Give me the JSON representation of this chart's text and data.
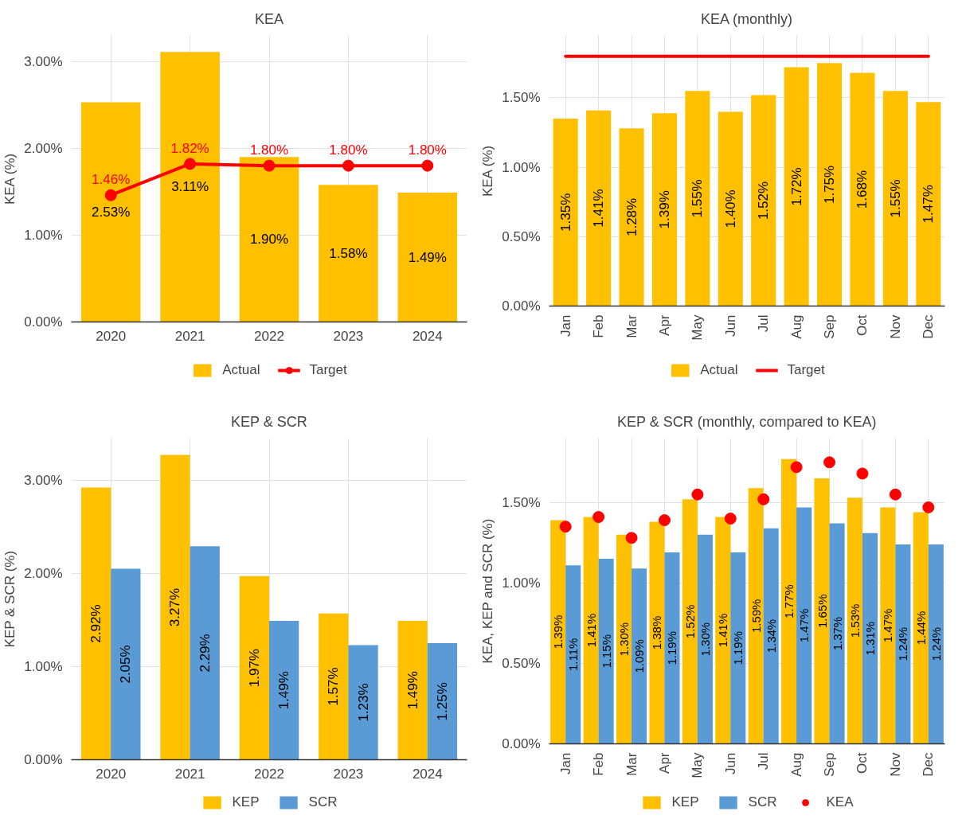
{
  "chart_data": [
    {
      "type": "bar",
      "title": "KEA",
      "ylabel": "KEA (%)",
      "categories": [
        "2020",
        "2021",
        "2022",
        "2023",
        "2024"
      ],
      "ylim": [
        0,
        3.3
      ],
      "yticks": [
        {
          "value": 0,
          "label": "0.00%"
        },
        {
          "value": 1,
          "label": "1.00%"
        },
        {
          "value": 2,
          "label": "2.00%"
        },
        {
          "value": 3,
          "label": "3.00%"
        }
      ],
      "grid": true,
      "legend": "bottom",
      "series": [
        {
          "name": "Actual",
          "color": "#ffc000",
          "values": [
            2.53,
            3.11,
            1.9,
            1.58,
            1.49
          ],
          "value_labels": [
            "2.53%",
            "3.11%",
            "1.90%",
            "1.58%",
            "1.49%"
          ]
        },
        {
          "name": "Target",
          "type": "line",
          "color": "#ff0000",
          "marker": "circle",
          "line_style": "solid",
          "values": [
            1.46,
            1.82,
            1.8,
            1.8,
            1.8
          ],
          "value_labels": [
            "1.46%",
            "1.82%",
            "1.80%",
            "1.80%",
            "1.80%"
          ]
        }
      ]
    },
    {
      "type": "bar",
      "title": "KEA (monthly)",
      "ylabel": "KEA (%)",
      "categories": [
        "Jan",
        "Feb",
        "Mar",
        "Apr",
        "May",
        "Jun",
        "Jul",
        "Aug",
        "Sep",
        "Oct",
        "Nov",
        "Dec"
      ],
      "ylim": [
        0,
        1.95
      ],
      "yticks": [
        {
          "value": 0,
          "label": "0.00%"
        },
        {
          "value": 0.5,
          "label": "0.50%"
        },
        {
          "value": 1,
          "label": "1.00%"
        },
        {
          "value": 1.5,
          "label": "1.50%"
        }
      ],
      "grid": true,
      "legend": "bottom",
      "series": [
        {
          "name": "Actual",
          "color": "#ffc000",
          "values": [
            1.35,
            1.41,
            1.28,
            1.39,
            1.55,
            1.4,
            1.52,
            1.72,
            1.75,
            1.68,
            1.55,
            1.47
          ],
          "value_labels": [
            "1.35%",
            "1.41%",
            "1.28%",
            "1.39%",
            "1.55%",
            "1.40%",
            "1.52%",
            "1.72%",
            "1.75%",
            "1.68%",
            "1.55%",
            "1.47%"
          ]
        },
        {
          "name": "Target",
          "type": "line",
          "color": "#ff0000",
          "line_style": "solid",
          "values": [
            1.8,
            1.8,
            1.8,
            1.8,
            1.8,
            1.8,
            1.8,
            1.8,
            1.8,
            1.8,
            1.8,
            1.8
          ]
        }
      ]
    },
    {
      "type": "bar",
      "title": "KEP & SCR",
      "ylabel": "KEP & SCR (%)",
      "categories": [
        "2020",
        "2021",
        "2022",
        "2023",
        "2024"
      ],
      "ylim": [
        0,
        3.45
      ],
      "yticks": [
        {
          "value": 0,
          "label": "0.00%"
        },
        {
          "value": 1,
          "label": "1.00%"
        },
        {
          "value": 2,
          "label": "2.00%"
        },
        {
          "value": 3,
          "label": "3.00%"
        }
      ],
      "grid": true,
      "legend": "bottom",
      "series": [
        {
          "name": "KEP",
          "color": "#ffc000",
          "values": [
            2.92,
            3.27,
            1.97,
            1.57,
            1.49
          ],
          "value_labels": [
            "2.92%",
            "3.27%",
            "1.97%",
            "1.57%",
            "1.49%"
          ]
        },
        {
          "name": "SCR",
          "color": "#5b9bd5",
          "values": [
            2.05,
            2.29,
            1.49,
            1.23,
            1.25
          ],
          "value_labels": [
            "2.05%",
            "2.29%",
            "1.49%",
            "1.23%",
            "1.25%"
          ]
        }
      ]
    },
    {
      "type": "bar",
      "title": "KEP & SCR (monthly, compared to KEA)",
      "ylabel": "KEA, KEP and SCR (%)",
      "categories": [
        "Jan",
        "Feb",
        "Mar",
        "Apr",
        "May",
        "Jun",
        "Jul",
        "Aug",
        "Sep",
        "Oct",
        "Nov",
        "Dec"
      ],
      "ylim": [
        0,
        1.9
      ],
      "yticks": [
        {
          "value": 0,
          "label": "0.00%"
        },
        {
          "value": 0.5,
          "label": "0.50%"
        },
        {
          "value": 1,
          "label": "1.00%"
        },
        {
          "value": 1.5,
          "label": "1.50%"
        }
      ],
      "grid": true,
      "legend": "bottom",
      "series": [
        {
          "name": "KEP",
          "color": "#ffc000",
          "values": [
            1.39,
            1.41,
            1.3,
            1.38,
            1.52,
            1.41,
            1.59,
            1.77,
            1.65,
            1.53,
            1.47,
            1.44
          ],
          "value_labels": [
            "1.39%",
            "1.41%",
            "1.30%",
            "1.38%",
            "1.52%",
            "1.41%",
            "1.59%",
            "1.77%",
            "1.65%",
            "1.53%",
            "1.47%",
            "1.44%"
          ]
        },
        {
          "name": "SCR",
          "color": "#5b9bd5",
          "values": [
            1.11,
            1.15,
            1.09,
            1.19,
            1.3,
            1.19,
            1.34,
            1.47,
            1.37,
            1.31,
            1.24,
            1.24
          ],
          "value_labels": [
            "1.11%",
            "1.15%",
            "1.09%",
            "1.19%",
            "1.30%",
            "1.19%",
            "1.34%",
            "1.47%",
            "1.37%",
            "1.31%",
            "1.24%",
            "1.24%"
          ]
        },
        {
          "name": "KEA",
          "type": "scatter",
          "color": "#ff0000",
          "marker": "circle",
          "x": [
            "Jan",
            "Feb",
            "Mar",
            "Apr",
            "May",
            "Jun",
            "Jul",
            "Aug",
            "Sep",
            "Oct",
            "Nov",
            "Dec"
          ],
          "values": [
            1.35,
            1.41,
            1.28,
            1.39,
            1.55,
            1.4,
            1.52,
            1.72,
            1.75,
            1.68,
            1.55,
            1.47
          ]
        }
      ]
    }
  ]
}
